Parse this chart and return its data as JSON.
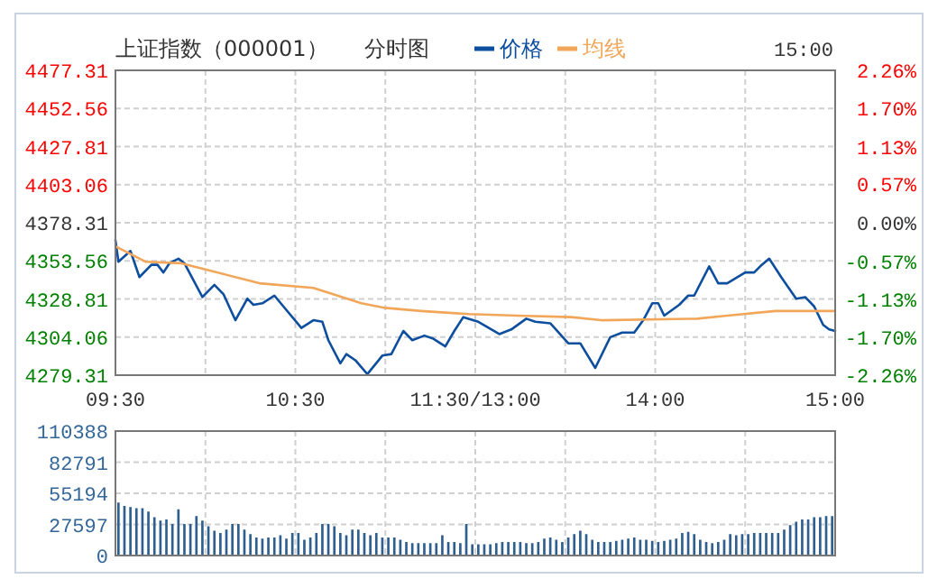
{
  "chart_data": [
    {
      "type": "line",
      "title": "上证指数（000001）",
      "subtitle": "分时图",
      "annotations": [
        "15:00"
      ],
      "legend": "top",
      "grid": true,
      "categories": [
        "09:30",
        null,
        null,
        null,
        null,
        null,
        null,
        null,
        null,
        null,
        null,
        null,
        null,
        null,
        null,
        null,
        null,
        null,
        null,
        null,
        null,
        null,
        null,
        null,
        null,
        null,
        null,
        null,
        null,
        null,
        null,
        null,
        null,
        null,
        null,
        null,
        null,
        null,
        null,
        null,
        null,
        null,
        null,
        null,
        null,
        null,
        null,
        null,
        null,
        null,
        null,
        null,
        null,
        null,
        null,
        null,
        null,
        null,
        null,
        null,
        "10:30",
        null,
        null,
        null,
        null,
        null,
        null,
        null,
        null,
        null,
        null,
        null,
        null,
        null,
        null,
        null,
        null,
        null,
        null,
        null,
        null,
        null,
        null,
        null,
        null,
        null,
        null,
        null,
        null,
        null,
        null,
        null,
        null,
        null,
        null,
        null,
        null,
        null,
        null,
        null,
        null,
        null,
        null,
        null,
        null,
        null,
        null,
        null,
        null,
        null,
        null,
        null,
        null,
        null,
        null,
        null,
        null,
        null,
        null,
        null,
        "11:30/13:00",
        null,
        null,
        null,
        null,
        null,
        null,
        null,
        null,
        null,
        null,
        null,
        null,
        null,
        null,
        null,
        null,
        null,
        null,
        null,
        null,
        null,
        null,
        null,
        null,
        null,
        null,
        null,
        null,
        null,
        null,
        null,
        null,
        null,
        null,
        null,
        null,
        null,
        null,
        null,
        null,
        null,
        null,
        null,
        null,
        null,
        null,
        null,
        null,
        null,
        null,
        null,
        null,
        null,
        null,
        null,
        null,
        null,
        null,
        null,
        "14:00",
        null,
        null,
        null,
        null,
        null,
        null,
        null,
        null,
        null,
        null,
        null,
        null,
        null,
        null,
        null,
        null,
        null,
        null,
        null,
        null,
        null,
        null,
        null,
        null,
        null,
        null,
        null,
        null,
        null,
        null,
        null,
        null,
        null,
        null,
        null,
        null,
        null,
        null,
        null,
        null,
        null,
        null,
        null,
        null,
        null,
        null,
        null,
        null,
        null,
        null,
        null,
        null,
        null,
        null,
        null,
        null,
        null,
        null,
        null,
        "15:00"
      ],
      "ylim": [
        4279.31,
        4477.31
      ],
      "yticks": [
        4279.31,
        4304.06,
        4328.81,
        4353.56,
        4378.31,
        4403.06,
        4427.81,
        4452.56,
        4477.31
      ],
      "y2lim": [
        -2.26,
        2.26
      ],
      "y2ticks": [
        {
          "value": -2.26,
          "label": "-2.26%"
        },
        {
          "value": -1.7,
          "label": "-1.70%"
        },
        {
          "value": -1.13,
          "label": "-1.13%"
        },
        {
          "value": -0.57,
          "label": "-0.57%"
        },
        {
          "value": 0,
          "label": "0.00%"
        },
        {
          "value": 0.57,
          "label": "0.57%"
        },
        {
          "value": 1.13,
          "label": "1.13%"
        },
        {
          "value": 1.7,
          "label": "1.70%"
        },
        {
          "value": 2.26,
          "label": "2.26%"
        }
      ],
      "series": [
        {
          "name": "价格",
          "color": "#0d4f9e",
          "values": [
            4367,
            4353,
            null,
            null,
            null,
            4360,
            null,
            null,
            4343,
            null,
            null,
            null,
            4351,
            null,
            4351,
            null,
            4346,
            null,
            4352,
            null,
            null,
            4355,
            null,
            4352,
            null,
            null,
            4341,
            null,
            null,
            4330,
            null,
            null,
            null,
            4338,
            null,
            null,
            4332,
            null,
            null,
            null,
            4315,
            null,
            null,
            null,
            4329,
            null,
            4325,
            null,
            null,
            4326,
            null,
            null,
            null,
            4331,
            null,
            null,
            4324,
            null,
            null,
            null,
            null,
            null,
            4310,
            null,
            null,
            null,
            4315,
            null,
            null,
            4314,
            null,
            4302,
            null,
            null,
            null,
            4287,
            null,
            4293,
            null,
            null,
            4289,
            null,
            null,
            null,
            4280,
            null,
            null,
            null,
            null,
            4292,
            null,
            null,
            4293,
            null,
            null,
            null,
            4308,
            null,
            null,
            4302,
            null,
            null,
            null,
            4305,
            null,
            null,
            4303,
            null,
            null,
            null,
            4298,
            null,
            null,
            4308,
            null,
            null,
            4317,
            null,
            null,
            null,
            null,
            4314,
            null,
            null,
            null,
            null,
            null,
            null,
            4306,
            null,
            null,
            null,
            4309,
            null,
            null,
            null,
            null,
            4316,
            null,
            null,
            4314,
            null,
            null,
            null,
            null,
            4313,
            null,
            null,
            null,
            null,
            null,
            4300,
            null,
            null,
            null,
            4300,
            null,
            null,
            null,
            null,
            4284,
            null,
            null,
            null,
            null,
            4304,
            null,
            null,
            null,
            4307,
            null,
            null,
            null,
            4307,
            null,
            null,
            4315,
            null,
            null,
            4326,
            null,
            4326,
            null,
            4318,
            null,
            null,
            null,
            null,
            4325,
            null,
            null,
            4331,
            null,
            4331,
            null,
            null,
            null,
            null,
            4350,
            null,
            null,
            4339,
            null,
            null,
            4339,
            null,
            null,
            null,
            null,
            null,
            4346,
            null,
            null,
            4346,
            null,
            4350,
            null,
            null,
            4355,
            null,
            null,
            null,
            4343,
            null,
            null,
            null,
            null,
            4329,
            null,
            null,
            4330,
            null,
            null,
            4324,
            null,
            null,
            4312,
            null,
            4309,
            null,
            4308
          ]
        },
        {
          "name": "均线",
          "color": "#f2a65a",
          "values": [
            4363,
            null,
            null,
            null,
            null,
            null,
            null,
            null,
            null,
            null,
            4353,
            null,
            null,
            null,
            null,
            null,
            null,
            null,
            null,
            null,
            null,
            null,
            4352,
            null,
            null,
            null,
            null,
            null,
            null,
            null,
            4348,
            null,
            null,
            null,
            null,
            null,
            null,
            null,
            null,
            null,
            null,
            null,
            null,
            null,
            null,
            null,
            null,
            null,
            4339,
            null,
            null,
            null,
            null,
            null,
            null,
            null,
            null,
            null,
            null,
            null,
            null,
            null,
            null,
            null,
            null,
            null,
            4336,
            null,
            null,
            null,
            null,
            null,
            null,
            null,
            null,
            null,
            null,
            null,
            null,
            null,
            null,
            null,
            4326,
            null,
            null,
            null,
            null,
            null,
            null,
            null,
            4323,
            null,
            null,
            null,
            null,
            null,
            null,
            null,
            null,
            null,
            null,
            null,
            4321,
            null,
            null,
            null,
            null,
            null,
            null,
            null,
            null,
            null,
            null,
            null,
            null,
            null,
            null,
            null,
            4319,
            null,
            null,
            null,
            null,
            null,
            null,
            null,
            null,
            null,
            null,
            null,
            null,
            null,
            null,
            null,
            4318,
            null,
            null,
            null,
            null,
            null,
            null,
            null,
            null,
            null,
            null,
            null,
            null,
            null,
            null,
            null,
            null,
            null,
            4317,
            null,
            null,
            null,
            null,
            null,
            null,
            null,
            null,
            null,
            4315,
            null,
            null,
            null,
            null,
            null,
            null,
            null,
            null,
            null,
            null,
            null,
            null,
            null,
            null,
            null,
            null,
            null,
            null,
            null,
            null,
            null,
            null,
            null,
            null,
            null,
            null,
            null,
            null,
            null,
            null,
            null,
            4316,
            null,
            null,
            null,
            null,
            null,
            null,
            null,
            null,
            null,
            4318,
            null,
            null,
            null,
            null,
            null,
            null,
            null,
            null,
            null,
            null,
            null,
            null,
            null,
            null,
            null,
            4321,
            null,
            null,
            null,
            null,
            null,
            null,
            null,
            null,
            null,
            null,
            null,
            null,
            null,
            null,
            null,
            null,
            null,
            null,
            null,
            4321
          ]
        }
      ]
    },
    {
      "type": "bar",
      "grid": true,
      "color": "#2f5f8f",
      "categories": [
        null,
        null,
        null,
        null,
        null,
        null,
        null,
        null,
        null,
        null,
        null,
        null,
        null,
        null,
        null,
        null,
        null,
        null,
        null,
        null,
        null,
        null,
        null,
        null,
        null,
        null,
        null,
        null,
        null,
        null,
        null,
        null,
        null,
        null,
        null,
        null,
        null,
        null,
        null,
        null,
        null,
        null,
        null,
        null,
        null,
        null,
        null,
        null,
        null,
        null,
        null,
        null,
        null,
        null,
        null,
        null,
        null,
        null,
        null,
        null,
        null,
        null,
        null,
        null,
        null,
        null,
        null,
        null,
        null,
        null,
        null,
        null,
        null,
        null,
        null,
        null,
        null,
        null,
        null,
        null,
        null,
        null,
        null,
        null,
        null,
        null,
        null,
        null,
        null,
        null,
        null,
        null,
        null,
        null,
        null,
        null,
        null,
        null,
        null,
        null,
        null,
        null,
        null,
        null,
        null,
        null,
        null,
        null,
        null,
        null,
        null,
        null,
        null,
        null,
        null,
        null,
        null,
        null,
        null,
        null,
        null,
        null,
        null,
        null,
        null,
        null,
        null,
        null,
        null,
        null,
        null,
        null,
        null,
        null,
        null,
        null,
        null,
        null,
        null,
        null,
        null,
        null,
        null,
        null,
        null,
        null,
        null,
        null,
        null,
        null,
        null,
        null,
        null,
        null,
        null,
        null,
        null,
        null,
        null,
        null,
        null,
        null,
        null,
        null,
        null,
        null,
        null,
        null,
        null,
        null,
        null,
        null,
        null,
        null,
        null,
        null,
        null,
        null,
        null,
        null,
        null,
        null,
        null,
        null,
        null,
        null,
        null,
        null,
        null,
        null,
        null,
        null,
        null,
        null,
        null,
        null,
        null,
        null,
        null,
        null,
        null,
        null,
        null,
        null,
        null,
        null,
        null,
        null,
        null,
        null,
        null,
        null,
        null,
        null,
        null,
        null,
        null,
        null,
        null,
        null,
        null,
        null,
        null,
        null,
        null,
        null,
        null,
        null,
        null,
        null,
        null,
        null,
        null,
        null,
        null,
        null,
        null,
        null,
        null,
        null,
        null
      ],
      "ylim": [
        0,
        110388
      ],
      "yticks": [
        0,
        27597,
        55194,
        82791,
        110388
      ],
      "values": [
        null,
        47000,
        null,
        44000,
        null,
        43000,
        null,
        42000,
        null,
        42000,
        null,
        39000,
        null,
        34000,
        null,
        31000,
        null,
        32000,
        null,
        28000,
        null,
        41000,
        null,
        28000,
        null,
        28000,
        null,
        35000,
        null,
        31000,
        null,
        26000,
        null,
        22000,
        null,
        20000,
        null,
        23000,
        null,
        28000,
        null,
        28000,
        null,
        23000,
        null,
        19000,
        null,
        16000,
        null,
        15000,
        null,
        16000,
        null,
        16000,
        null,
        18000,
        null,
        15000,
        null,
        20000,
        null,
        20000,
        null,
        14000,
        null,
        16000,
        null,
        20000,
        null,
        28000,
        null,
        28000,
        null,
        26000,
        null,
        20000,
        null,
        18000,
        null,
        23000,
        null,
        23000,
        null,
        20000,
        null,
        18000,
        null,
        20000,
        null,
        16000,
        null,
        16000,
        null,
        16000,
        null,
        14000,
        null,
        12000,
        null,
        11000,
        null,
        11000,
        null,
        11000,
        null,
        11000,
        null,
        11000,
        null,
        18000,
        null,
        12000,
        null,
        12000,
        null,
        11000,
        null,
        28000,
        null,
        10000,
        null,
        10000,
        null,
        10000,
        null,
        10000,
        null,
        11000,
        null,
        12000,
        null,
        12000,
        null,
        12000,
        null,
        12000,
        null,
        11000,
        null,
        11000,
        null,
        12000,
        null,
        15000,
        null,
        16000,
        null,
        14000,
        null,
        12000,
        null,
        16000,
        null,
        19000,
        null,
        22000,
        null,
        19000,
        null,
        14000,
        null,
        12000,
        null,
        12000,
        null,
        12000,
        null,
        13000,
        null,
        14000,
        null,
        15000,
        null,
        16000,
        null,
        14000,
        null,
        14000,
        null,
        13000,
        null,
        12000,
        null,
        13000,
        null,
        14000,
        null,
        15000,
        null,
        20000,
        null,
        21000,
        null,
        19000,
        null,
        14000,
        null,
        12000,
        null,
        11000,
        null,
        12000,
        null,
        14000,
        null,
        19000,
        null,
        18000,
        null,
        19000,
        null,
        19000,
        null,
        20000,
        null,
        20000,
        null,
        20000,
        null,
        20000,
        null,
        20000,
        null,
        23000,
        null,
        27000,
        null,
        30000,
        null,
        32000,
        null,
        32000,
        null,
        34000,
        null,
        34000,
        null,
        35000,
        null,
        35000,
        null
      ]
    }
  ]
}
